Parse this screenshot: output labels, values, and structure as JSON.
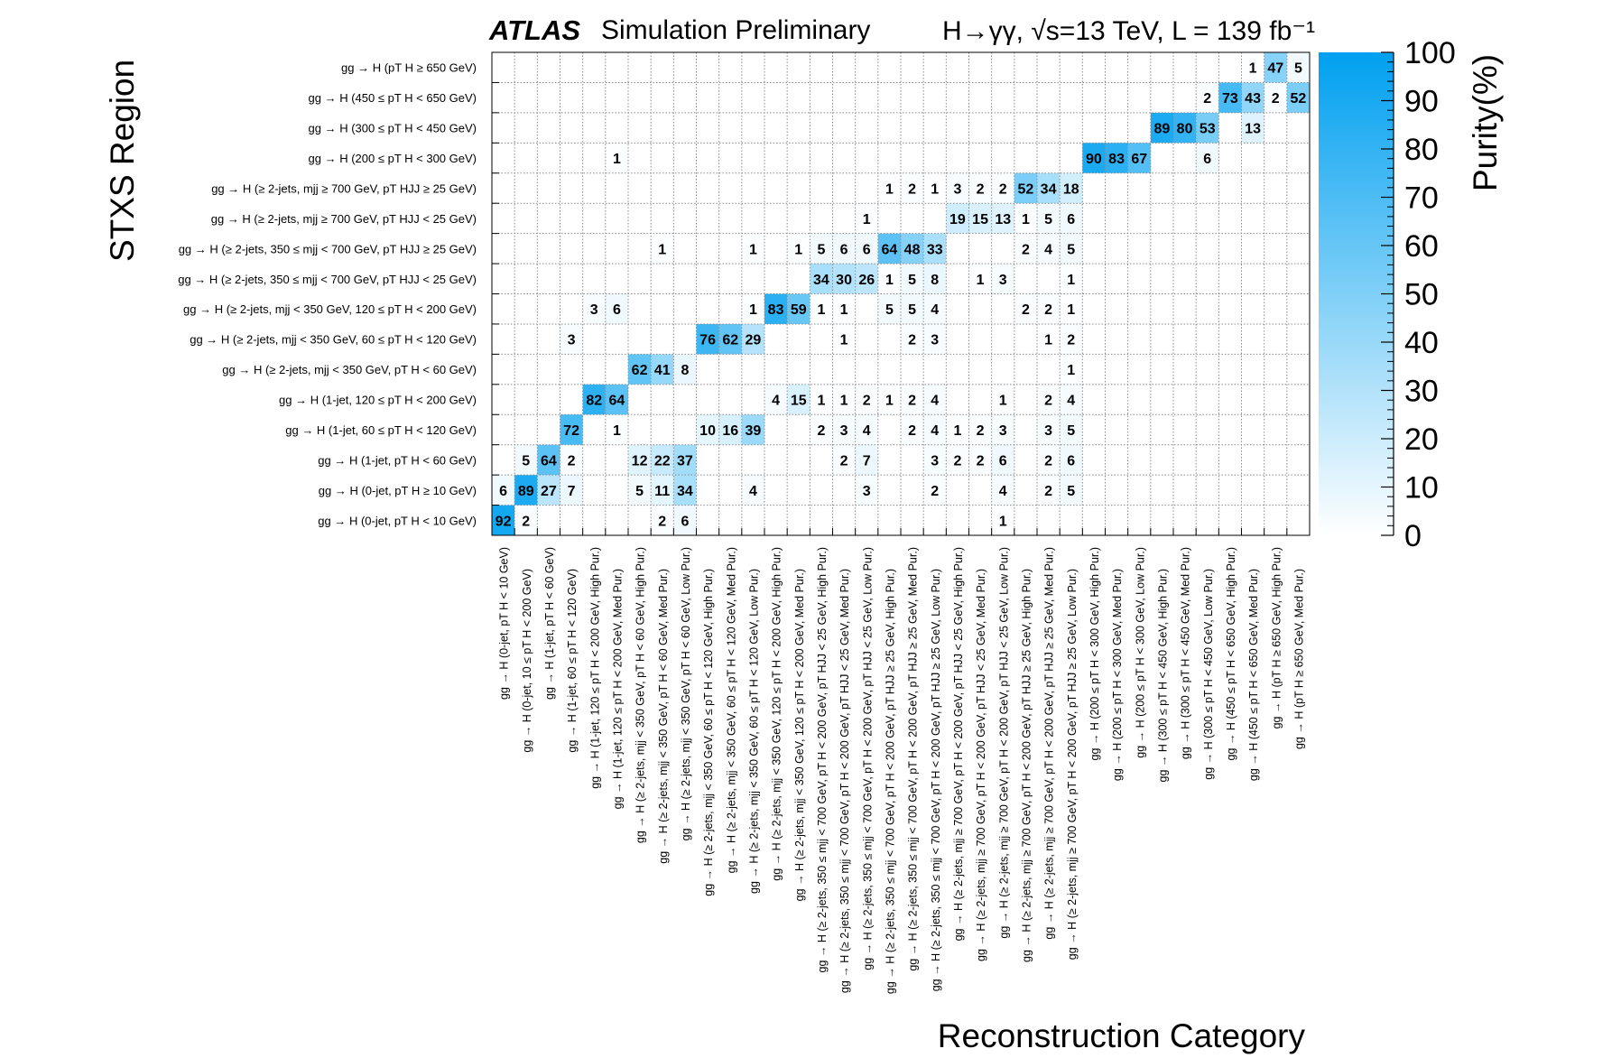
{
  "header": {
    "experiment": "ATLAS",
    "status": "Simulation Preliminary",
    "process": "H→γγ,  √s=13 TeV, L = 139 fb⁻¹"
  },
  "chart_data": {
    "type": "heatmap",
    "title": "",
    "xlabel": "Reconstruction Category",
    "ylabel": "STXS Region",
    "zlabel": "Purity(%)",
    "zlim": [
      0,
      100
    ],
    "zticks": [
      0,
      10,
      20,
      30,
      40,
      50,
      60,
      70,
      80,
      90,
      100
    ],
    "colorscale": [
      "#ffffff",
      "#00a0f0"
    ],
    "y_categories": [
      "gg → H (0-jet, pT H < 10 GeV)",
      "gg → H (0-jet, pT H ≥ 10 GeV)",
      "gg → H (1-jet, pT H < 60 GeV)",
      "gg → H (1-jet, 60 ≤ pT H < 120 GeV)",
      "gg → H (1-jet, 120 ≤ pT H < 200 GeV)",
      "gg → H (≥ 2-jets, mjj < 350 GeV, pT H < 60 GeV)",
      "gg → H (≥ 2-jets, mjj < 350 GeV, 60 ≤ pT H < 120 GeV)",
      "gg → H (≥ 2-jets, mjj < 350 GeV, 120 ≤ pT H < 200 GeV)",
      "gg → H (≥ 2-jets, 350 ≤ mjj < 700 GeV, pT HJJ < 25 GeV)",
      "gg → H (≥ 2-jets, 350 ≤ mjj < 700 GeV, pT HJJ ≥ 25 GeV)",
      "gg → H (≥ 2-jets, mjj ≥ 700 GeV, pT HJJ < 25 GeV)",
      "gg → H (≥ 2-jets, mjj ≥ 700 GeV, pT HJJ ≥ 25 GeV)",
      "gg → H (200 ≤ pT H < 300 GeV)",
      "gg → H (300 ≤ pT H < 450 GeV)",
      "gg → H (450 ≤ pT H < 650 GeV)",
      "gg → H (pT H ≥ 650 GeV)"
    ],
    "x_categories": [
      "gg → H (0-jet, pT H < 10 GeV)",
      "gg → H (0-jet, 10 ≤ pT H < 200 GeV)",
      "gg → H (1-jet, pT H < 60 GeV)",
      "gg → H (1-jet, 60 ≤ pT H < 120 GeV)",
      "gg → H (1-jet, 120 ≤ pT H < 200 GeV, High Pur.)",
      "gg → H (1-jet, 120 ≤ pT H < 200 GeV, Med Pur.)",
      "gg → H (≥ 2-jets, mjj < 350 GeV, pT H < 60 GeV, High Pur.)",
      "gg → H (≥ 2-jets, mjj < 350 GeV, pT H < 60 GeV, Med Pur.)",
      "gg → H (≥ 2-jets, mjj < 350 GeV, pT H < 60 GeV, Low Pur.)",
      "gg → H (≥ 2-jets, mjj < 350 GeV, 60 ≤ pT H < 120 GeV, High Pur.)",
      "gg → H (≥ 2-jets, mjj < 350 GeV, 60 ≤ pT H < 120 GeV, Med Pur.)",
      "gg → H (≥ 2-jets, mjj < 350 GeV, 60 ≤ pT H < 120 GeV, Low Pur.)",
      "gg → H (≥ 2-jets, mjj < 350 GeV, 120 ≤ pT H < 200 GeV, High Pur.)",
      "gg → H (≥ 2-jets, mjj < 350 GeV, 120 ≤ pT H < 200 GeV, Med Pur.)",
      "gg → H (≥ 2-jets, 350 ≤ mjj < 700 GeV, pT H < 200 GeV, pT HJJ < 25 GeV, High Pur.)",
      "gg → H (≥ 2-jets, 350 ≤ mjj < 700 GeV, pT H < 200 GeV, pT HJJ < 25 GeV, Med Pur.)",
      "gg → H (≥ 2-jets, 350 ≤ mjj < 700 GeV, pT H < 200 GeV, pT HJJ < 25 GeV, Low Pur.)",
      "gg → H (≥ 2-jets, 350 ≤ mjj < 700 GeV, pT H < 200 GeV, pT HJJ ≥ 25 GeV, High Pur.)",
      "gg → H (≥ 2-jets, 350 ≤ mjj < 700 GeV, pT H < 200 GeV, pT HJJ ≥ 25 GeV, Med Pur.)",
      "gg → H (≥ 2-jets, 350 ≤ mjj < 700 GeV, pT H < 200 GeV, pT HJJ ≥ 25 GeV, Low Pur.)",
      "gg → H (≥ 2-jets, mjj ≥ 700 GeV, pT H < 200 GeV, pT HJJ < 25 GeV, High Pur.)",
      "gg → H (≥ 2-jets, mjj ≥ 700 GeV, pT H < 200 GeV, pT HJJ < 25 GeV, Med Pur.)",
      "gg → H (≥ 2-jets, mjj ≥ 700 GeV, pT H < 200 GeV, pT HJJ < 25 GeV, Low Pur.)",
      "gg → H (≥ 2-jets, mjj ≥ 700 GeV, pT H < 200 GeV, pT HJJ ≥ 25 GeV, High Pur.)",
      "gg → H (≥ 2-jets, mjj ≥ 700 GeV, pT H < 200 GeV, pT HJJ ≥ 25 GeV, Med Pur.)",
      "gg → H (≥ 2-jets, mjj ≥ 700 GeV, pT H < 200 GeV, pT HJJ ≥ 25 GeV, Low Pur.)",
      "gg → H (200 ≤ pT H < 300 GeV, High Pur.)",
      "gg → H (200 ≤ pT H < 300 GeV, Med Pur.)",
      "gg → H (200 ≤ pT H < 300 GeV, Low Pur.)",
      "gg → H (300 ≤ pT H < 450 GeV, High Pur.)",
      "gg → H (300 ≤ pT H < 450 GeV, Med Pur.)",
      "gg → H (300 ≤ pT H < 450 GeV, Low Pur.)",
      "gg → H (450 ≤ pT H < 650 GeV, High Pur.)",
      "gg → H (450 ≤ pT H < 650 GeV, Med Pur.)",
      "gg → H (pT H ≥ 650 GeV, High Pur.)",
      "gg → H (pT H ≥ 650 GeV, Med Pur.)"
    ],
    "cells": [
      [
        0,
        0,
        92
      ],
      [
        1,
        0,
        2
      ],
      [
        8,
        0,
        6
      ],
      [
        7,
        0,
        2
      ],
      [
        22,
        0,
        1
      ],
      [
        0,
        1,
        6
      ],
      [
        1,
        1,
        89
      ],
      [
        2,
        1,
        27
      ],
      [
        3,
        1,
        7
      ],
      [
        6,
        1,
        5
      ],
      [
        7,
        1,
        11
      ],
      [
        8,
        1,
        34
      ],
      [
        11,
        1,
        4
      ],
      [
        16,
        1,
        3
      ],
      [
        19,
        1,
        2
      ],
      [
        22,
        1,
        4
      ],
      [
        24,
        1,
        2
      ],
      [
        25,
        1,
        5
      ],
      [
        1,
        2,
        5
      ],
      [
        2,
        2,
        64
      ],
      [
        3,
        2,
        2
      ],
      [
        6,
        2,
        12
      ],
      [
        7,
        2,
        22
      ],
      [
        8,
        2,
        37
      ],
      [
        15,
        2,
        2
      ],
      [
        16,
        2,
        7
      ],
      [
        19,
        2,
        3
      ],
      [
        20,
        2,
        2
      ],
      [
        21,
        2,
        2
      ],
      [
        22,
        2,
        6
      ],
      [
        24,
        2,
        2
      ],
      [
        25,
        2,
        6
      ],
      [
        3,
        3,
        72
      ],
      [
        5,
        3,
        1
      ],
      [
        9,
        3,
        10
      ],
      [
        10,
        3,
        16
      ],
      [
        11,
        3,
        39
      ],
      [
        14,
        3,
        2
      ],
      [
        15,
        3,
        3
      ],
      [
        16,
        3,
        4
      ],
      [
        18,
        3,
        2
      ],
      [
        19,
        3,
        4
      ],
      [
        20,
        3,
        1
      ],
      [
        21,
        3,
        2
      ],
      [
        22,
        3,
        3
      ],
      [
        24,
        3,
        3
      ],
      [
        25,
        3,
        5
      ],
      [
        4,
        4,
        82
      ],
      [
        5,
        4,
        64
      ],
      [
        12,
        4,
        4
      ],
      [
        13,
        4,
        15
      ],
      [
        14,
        4,
        1
      ],
      [
        15,
        4,
        1
      ],
      [
        16,
        4,
        2
      ],
      [
        17,
        4,
        1
      ],
      [
        18,
        4,
        2
      ],
      [
        19,
        4,
        4
      ],
      [
        22,
        4,
        1
      ],
      [
        24,
        4,
        2
      ],
      [
        25,
        4,
        4
      ],
      [
        6,
        5,
        62
      ],
      [
        7,
        5,
        41
      ],
      [
        8,
        5,
        8
      ],
      [
        25,
        5,
        1
      ],
      [
        3,
        6,
        3
      ],
      [
        9,
        6,
        76
      ],
      [
        10,
        6,
        62
      ],
      [
        11,
        6,
        29
      ],
      [
        15,
        6,
        1
      ],
      [
        18,
        6,
        2
      ],
      [
        19,
        6,
        3
      ],
      [
        24,
        6,
        1
      ],
      [
        25,
        6,
        2
      ],
      [
        4,
        7,
        3
      ],
      [
        5,
        7,
        6
      ],
      [
        11,
        7,
        1
      ],
      [
        12,
        7,
        83
      ],
      [
        13,
        7,
        59
      ],
      [
        14,
        7,
        1
      ],
      [
        15,
        7,
        1
      ],
      [
        17,
        7,
        5
      ],
      [
        18,
        7,
        5
      ],
      [
        19,
        7,
        4
      ],
      [
        23,
        7,
        2
      ],
      [
        24,
        7,
        2
      ],
      [
        25,
        7,
        1
      ],
      [
        14,
        8,
        34
      ],
      [
        15,
        8,
        30
      ],
      [
        16,
        8,
        26
      ],
      [
        17,
        8,
        1
      ],
      [
        18,
        8,
        5
      ],
      [
        19,
        8,
        8
      ],
      [
        21,
        8,
        1
      ],
      [
        22,
        8,
        3
      ],
      [
        25,
        8,
        1
      ],
      [
        7,
        9,
        1
      ],
      [
        11,
        9,
        1
      ],
      [
        13,
        9,
        1
      ],
      [
        14,
        9,
        5
      ],
      [
        15,
        9,
        6
      ],
      [
        16,
        9,
        6
      ],
      [
        17,
        9,
        64
      ],
      [
        18,
        9,
        48
      ],
      [
        19,
        9,
        33
      ],
      [
        23,
        9,
        2
      ],
      [
        24,
        9,
        4
      ],
      [
        25,
        9,
        5
      ],
      [
        16,
        10,
        1
      ],
      [
        20,
        10,
        19
      ],
      [
        21,
        10,
        15
      ],
      [
        22,
        10,
        13
      ],
      [
        23,
        10,
        1
      ],
      [
        24,
        10,
        5
      ],
      [
        25,
        10,
        6
      ],
      [
        17,
        11,
        1
      ],
      [
        18,
        11,
        2
      ],
      [
        19,
        11,
        1
      ],
      [
        20,
        11,
        3
      ],
      [
        21,
        11,
        2
      ],
      [
        22,
        11,
        2
      ],
      [
        23,
        11,
        52
      ],
      [
        24,
        11,
        34
      ],
      [
        25,
        11,
        18
      ],
      [
        5,
        12,
        1
      ],
      [
        26,
        12,
        90
      ],
      [
        27,
        12,
        83
      ],
      [
        28,
        12,
        67
      ],
      [
        31,
        12,
        6
      ],
      [
        29,
        13,
        89
      ],
      [
        30,
        13,
        80
      ],
      [
        31,
        13,
        53
      ],
      [
        33,
        13,
        13
      ],
      [
        31,
        14,
        2
      ],
      [
        32,
        14,
        73
      ],
      [
        33,
        14,
        43
      ],
      [
        34,
        14,
        2
      ],
      [
        35,
        14,
        52
      ],
      [
        33,
        15,
        1
      ],
      [
        34,
        15,
        47
      ],
      [
        35,
        15,
        5
      ]
    ]
  }
}
